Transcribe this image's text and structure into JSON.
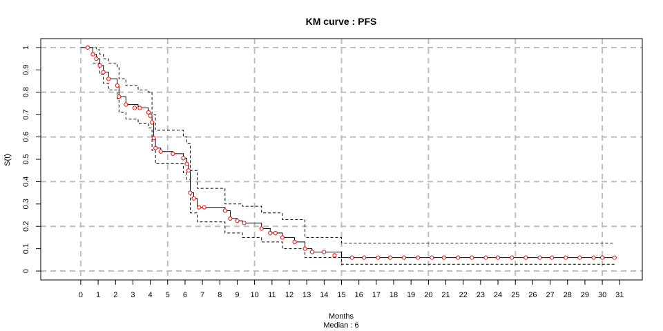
{
  "chart_data": {
    "type": "line",
    "title": "KM curve : PFS",
    "xlabel": "Months",
    "subtitle": "Median : 6",
    "ylabel": "S(t)",
    "xlim": [
      -2.3,
      32.3
    ],
    "ylim": [
      -0.04,
      1.04
    ],
    "x_ticks": [
      0,
      1,
      2,
      3,
      4,
      5,
      6,
      7,
      8,
      9,
      10,
      11,
      12,
      13,
      14,
      15,
      16,
      17,
      18,
      19,
      20,
      21,
      22,
      23,
      24,
      25,
      26,
      27,
      28,
      29,
      30,
      31
    ],
    "y_ticks": [
      0,
      0.1,
      0.2,
      0.3,
      0.4,
      0.5,
      0.6,
      0.7,
      0.8,
      0.9,
      1
    ],
    "x_grid": [
      0,
      5,
      10,
      15,
      20,
      25,
      30
    ],
    "y_grid": [
      0,
      0.2,
      0.4,
      0.6,
      0.8,
      1
    ],
    "grid": true,
    "colors": {
      "survival": "#000000",
      "ci": "#000000",
      "grid": "#bebebe",
      "censor_points": "#ff0000"
    },
    "series": [
      {
        "role": "survival",
        "style": "solid",
        "x": [
          0,
          0.7,
          0.9,
          1.1,
          1.3,
          1.6,
          2.1,
          2.2,
          2.6,
          3.3,
          3.9,
          4.0,
          4.1,
          4.2,
          4.3,
          4.6,
          5.3,
          5.9,
          6.1,
          6.2,
          6.3,
          6.5,
          6.7,
          7.0,
          8.3,
          8.6,
          9.0,
          9.3,
          10.4,
          10.9,
          11.6,
          12.0,
          12.3,
          12.9,
          13.3,
          15.0,
          30.7
        ],
        "y": [
          1,
          0.97,
          0.95,
          0.92,
          0.89,
          0.86,
          0.83,
          0.78,
          0.745,
          0.73,
          0.71,
          0.695,
          0.665,
          0.595,
          0.55,
          0.535,
          0.525,
          0.505,
          0.48,
          0.45,
          0.35,
          0.325,
          0.285,
          0.285,
          0.27,
          0.235,
          0.225,
          0.215,
          0.19,
          0.17,
          0.15,
          0.15,
          0.13,
          0.1,
          0.085,
          0.06,
          0.06
        ]
      },
      {
        "role": "upper-ci",
        "style": "dashed",
        "x": [
          0,
          0.9,
          1.1,
          1.3,
          1.6,
          2.1,
          2.2,
          2.6,
          3.3,
          3.9,
          4.1,
          4.3,
          5.9,
          6.1,
          6.3,
          6.7,
          8.3,
          9.3,
          10.4,
          11.6,
          12.9,
          15.0,
          30.7
        ],
        "y": [
          1,
          0.99,
          0.97,
          0.95,
          0.93,
          0.91,
          0.86,
          0.83,
          0.81,
          0.8,
          0.7,
          0.63,
          0.6,
          0.57,
          0.45,
          0.37,
          0.3,
          0.29,
          0.26,
          0.23,
          0.15,
          0.125,
          0.125
        ]
      },
      {
        "role": "lower-ci",
        "style": "dashed",
        "x": [
          0.7,
          1.1,
          1.3,
          1.6,
          2.1,
          2.2,
          2.6,
          3.3,
          3.9,
          4.1,
          4.3,
          5.9,
          6.1,
          6.3,
          6.7,
          8.3,
          9.3,
          10.4,
          11.6,
          12.9,
          15.0,
          30.7
        ],
        "y": [
          0.93,
          0.88,
          0.84,
          0.81,
          0.77,
          0.71,
          0.68,
          0.66,
          0.64,
          0.54,
          0.48,
          0.44,
          0.41,
          0.26,
          0.22,
          0.17,
          0.15,
          0.13,
          0.1,
          0.06,
          0.03,
          0.03
        ]
      }
    ],
    "censor_points": {
      "x": [
        0.4,
        0.7,
        0.9,
        1.1,
        1.3,
        1.6,
        2.1,
        2.2,
        2.6,
        3.1,
        3.4,
        3.9,
        4.0,
        4.1,
        4.2,
        4.3,
        4.6,
        5.3,
        5.9,
        6.1,
        6.2,
        6.3,
        6.5,
        6.8,
        7.1,
        8.3,
        8.6,
        9.0,
        9.4,
        10.4,
        10.9,
        11.2,
        11.6,
        12.3,
        12.9,
        13.3,
        14.0,
        14.6,
        15.6,
        16.3,
        17.1,
        17.8,
        18.6,
        19.4,
        20.2,
        20.9,
        21.7,
        22.5,
        23.3,
        24.0,
        24.8,
        25.6,
        26.4,
        27.1,
        27.9,
        28.7,
        29.5,
        30.0,
        30.7
      ],
      "y": [
        1,
        0.97,
        0.95,
        0.92,
        0.89,
        0.86,
        0.83,
        0.78,
        0.745,
        0.73,
        0.73,
        0.71,
        0.695,
        0.665,
        0.595,
        0.55,
        0.535,
        0.525,
        0.505,
        0.48,
        0.45,
        0.35,
        0.325,
        0.285,
        0.285,
        0.27,
        0.235,
        0.225,
        0.215,
        0.19,
        0.17,
        0.17,
        0.15,
        0.13,
        0.1,
        0.085,
        0.085,
        0.07,
        0.06,
        0.06,
        0.06,
        0.06,
        0.06,
        0.06,
        0.06,
        0.06,
        0.06,
        0.06,
        0.06,
        0.06,
        0.06,
        0.06,
        0.06,
        0.06,
        0.06,
        0.06,
        0.06,
        0.06,
        0.06
      ]
    }
  }
}
